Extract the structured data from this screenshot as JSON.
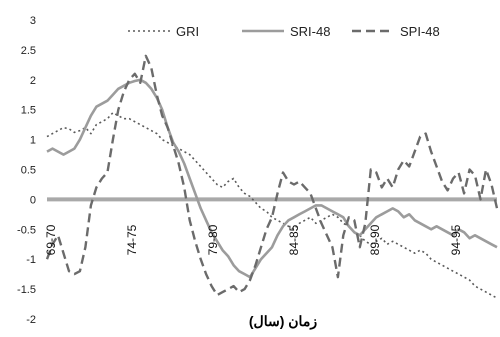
{
  "chart_data": {
    "type": "line",
    "xlabel": "زمان (سال)",
    "ylabel": "",
    "ylim": [
      -2,
      3
    ],
    "yticks": [
      "3",
      "2.5",
      "2",
      "1.5",
      "1",
      "0.5",
      "0",
      "-0.5",
      "-1",
      "-1.5",
      "-2"
    ],
    "xticks": [
      "69-70",
      "74-75",
      "79-80",
      "84-85",
      "89-90",
      "94-95"
    ],
    "grid": false,
    "zero_line_color": "#a9a9a9",
    "legend_position": "top",
    "series": [
      {
        "name": "GRI",
        "style": "dotted",
        "color": "#5a5a5a",
        "values": [
          1.05,
          1.1,
          1.15,
          1.2,
          1.18,
          1.12,
          1.15,
          1.2,
          1.1,
          1.25,
          1.3,
          1.35,
          1.45,
          1.4,
          1.35,
          1.35,
          1.3,
          1.25,
          1.2,
          1.15,
          1.1,
          1.0,
          0.95,
          0.9,
          0.85,
          0.8,
          0.75,
          0.65,
          0.55,
          0.45,
          0.35,
          0.25,
          0.2,
          0.3,
          0.35,
          0.2,
          0.1,
          0.05,
          -0.05,
          -0.15,
          -0.2,
          -0.3,
          -0.35,
          -0.4,
          -0.45,
          -0.5,
          -0.4,
          -0.35,
          -0.3,
          -0.4,
          -0.35,
          -0.3,
          -0.25,
          -0.3,
          -0.4,
          -0.45,
          -0.55,
          -0.6,
          -0.7,
          -0.75,
          -0.7,
          -0.65,
          -0.75,
          -0.7,
          -0.75,
          -0.8,
          -0.85,
          -0.9,
          -0.85,
          -0.9,
          -1.0,
          -1.05,
          -1.1,
          -1.15,
          -1.2,
          -1.25,
          -1.3,
          -1.35,
          -1.45,
          -1.5,
          -1.55,
          -1.6,
          -1.65
        ]
      },
      {
        "name": "SRI-48",
        "style": "solid",
        "color": "#9c9c9c",
        "values": [
          0.8,
          0.85,
          0.8,
          0.75,
          0.8,
          0.85,
          1.0,
          1.2,
          1.4,
          1.55,
          1.6,
          1.65,
          1.75,
          1.85,
          1.9,
          1.95,
          1.98,
          2.0,
          1.95,
          1.85,
          1.7,
          1.5,
          1.2,
          0.95,
          0.8,
          0.6,
          0.35,
          0.1,
          -0.15,
          -0.35,
          -0.55,
          -0.7,
          -0.85,
          -0.95,
          -1.1,
          -1.2,
          -1.25,
          -1.3,
          -1.15,
          -1.0,
          -0.9,
          -0.8,
          -0.6,
          -0.45,
          -0.35,
          -0.3,
          -0.25,
          -0.2,
          -0.15,
          -0.1,
          -0.1,
          -0.15,
          -0.2,
          -0.25,
          -0.3,
          -0.45,
          -0.55,
          -0.6,
          -0.5,
          -0.4,
          -0.3,
          -0.25,
          -0.2,
          -0.15,
          -0.2,
          -0.3,
          -0.25,
          -0.35,
          -0.4,
          -0.45,
          -0.5,
          -0.45,
          -0.5,
          -0.55,
          -0.6,
          -0.5,
          -0.55,
          -0.65,
          -0.6,
          -0.65,
          -0.7,
          -0.75,
          -0.8
        ]
      },
      {
        "name": "SPI-48",
        "style": "dashed",
        "color": "#6b6b6b",
        "values": [
          -1.0,
          -0.75,
          -0.6,
          -0.9,
          -1.2,
          -1.25,
          -1.2,
          -0.8,
          -0.1,
          0.2,
          0.35,
          0.45,
          1.0,
          1.5,
          1.8,
          2.0,
          2.1,
          1.95,
          2.4,
          2.2,
          1.75,
          1.4,
          1.2,
          0.9,
          0.6,
          0.2,
          -0.35,
          -0.7,
          -1.0,
          -1.25,
          -1.45,
          -1.6,
          -1.55,
          -1.5,
          -1.45,
          -1.55,
          -1.5,
          -1.35,
          -1.1,
          -0.8,
          -0.5,
          -0.3,
          0.1,
          0.45,
          0.3,
          0.25,
          0.3,
          0.2,
          0.1,
          -0.15,
          -0.4,
          -0.6,
          -0.8,
          -1.3,
          -0.6,
          -0.3,
          -0.35,
          -0.8,
          -0.4,
          0.5,
          0.45,
          0.2,
          0.35,
          0.2,
          0.5,
          0.65,
          0.55,
          0.8,
          1.05,
          1.1,
          0.8,
          0.55,
          0.3,
          0.15,
          0.35,
          0.45,
          0.1,
          0.5,
          0.4,
          0.0,
          0.5,
          0.25,
          -0.15
        ]
      }
    ]
  }
}
